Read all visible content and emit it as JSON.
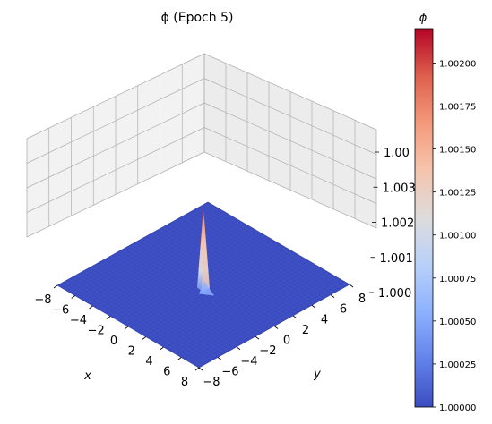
{
  "chart_data": {
    "type": "surface3d",
    "title": "ϕ (Epoch 5)",
    "xlabel": "x",
    "ylabel": "y",
    "xlim": [
      -8,
      8
    ],
    "ylim": [
      -8,
      8
    ],
    "zlim": [
      1.0,
      1.004
    ],
    "x_ticks": [
      -8,
      -6,
      -4,
      -2,
      0,
      2,
      4,
      6,
      8
    ],
    "x_tick_labels": [
      "−8",
      "−6",
      "−4",
      "−2",
      "0",
      "2",
      "4",
      "6",
      "8"
    ],
    "y_ticks": [
      -8,
      -6,
      -4,
      -2,
      0,
      2,
      4,
      6,
      8
    ],
    "y_tick_labels": [
      "−8",
      "−6",
      "−4",
      "−2",
      "0",
      "2",
      "4",
      "6",
      "8"
    ],
    "z_ticks": [
      1.0,
      1.001,
      1.002,
      1.003,
      1.004
    ],
    "z_tick_labels": [
      "1.000",
      "1.001",
      "1.002",
      "1.003",
      "1.00"
    ],
    "surface": {
      "baseline": 1.0,
      "peak_x": 0,
      "peak_y": 0,
      "peak_value": 1.0022
    },
    "colorbar": {
      "label": "ϕ",
      "colormap": "coolwarm",
      "range": [
        1.0,
        1.0022
      ],
      "ticks": [
        1.0,
        1.00025,
        1.0005,
        1.00075,
        1.001,
        1.00125,
        1.0015,
        1.00175,
        1.002
      ],
      "tick_labels": [
        "1.00000",
        "1.00025",
        "1.00050",
        "1.00075",
        "1.00100",
        "1.00125",
        "1.00150",
        "1.00175",
        "1.00200"
      ]
    },
    "grid": true,
    "colors": {
      "low": "#3b4cc0",
      "mid": "#dddcdc",
      "high": "#b40426",
      "pane": "#f2f2f2",
      "grid": "#b0b0b0"
    }
  }
}
